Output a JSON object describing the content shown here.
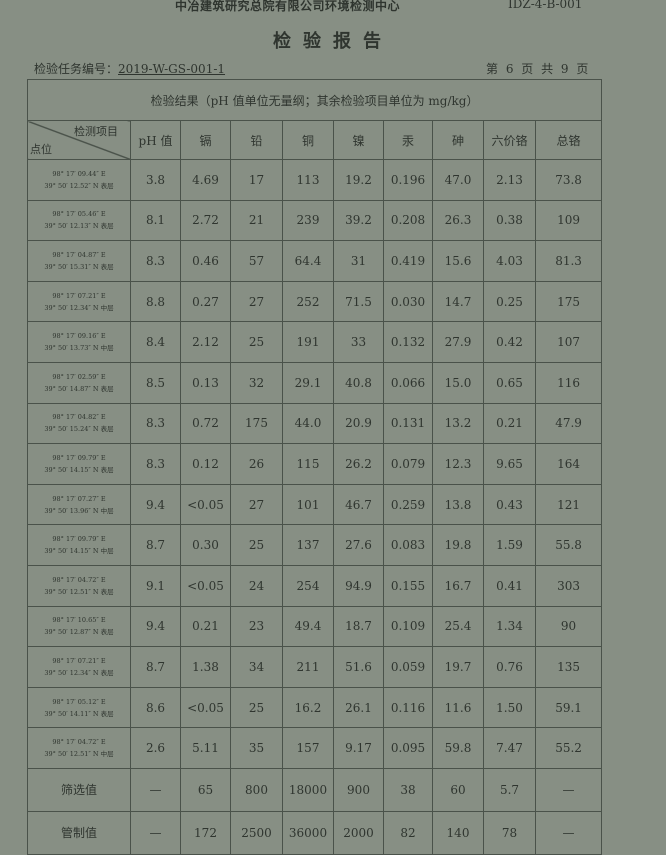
{
  "header": {
    "org": "中冶建筑研究总院有限公司环境检测中心",
    "code": "IDZ-4-B-001",
    "title": "检验报告",
    "task_label": "检验任务编号：",
    "task_no": "2019-W-GS-001-1",
    "page": "第 6 页  共 9 页"
  },
  "table": {
    "caption": "检验结果（pH 值单位无量纲；其余检验项目单位为 mg/kg）",
    "corner_top": "检测项目",
    "corner_bottom": "点位",
    "columns": [
      "pH 值",
      "镉",
      "铅",
      "铜",
      "镍",
      "汞",
      "砷",
      "六价铬",
      "总铬"
    ],
    "rows": [
      {
        "lon": "98° 17′ 09.44″ E",
        "lat": "39° 50′ 12.52″ N 表层",
        "values": [
          "3.8",
          "4.69",
          "17",
          "113",
          "19.2",
          "0.196",
          "47.0",
          "2.13",
          "73.8"
        ]
      },
      {
        "lon": "98° 17′ 05.46″ E",
        "lat": "39° 50′ 12.13″ N 表层",
        "values": [
          "8.1",
          "2.72",
          "21",
          "239",
          "39.2",
          "0.208",
          "26.3",
          "0.38",
          "109"
        ]
      },
      {
        "lon": "98° 17′ 04.87″ E",
        "lat": "39° 50′ 15.31″ N 表层",
        "values": [
          "8.3",
          "0.46",
          "57",
          "64.4",
          "31",
          "0.419",
          "15.6",
          "4.03",
          "81.3"
        ]
      },
      {
        "lon": "98° 17′ 07.21″ E",
        "lat": "39° 50′ 12.34″ N 中层",
        "values": [
          "8.8",
          "0.27",
          "27",
          "252",
          "71.5",
          "0.030",
          "14.7",
          "0.25",
          "175"
        ]
      },
      {
        "lon": "98° 17′ 09.16″ E",
        "lat": "39° 50′ 13.73″ N 中层",
        "values": [
          "8.4",
          "2.12",
          "25",
          "191",
          "33",
          "0.132",
          "27.9",
          "0.42",
          "107"
        ]
      },
      {
        "lon": "98° 17′ 02.59″ E",
        "lat": "39° 50′ 14.87″ N 表层",
        "values": [
          "8.5",
          "0.13",
          "32",
          "29.1",
          "40.8",
          "0.066",
          "15.0",
          "0.65",
          "116"
        ]
      },
      {
        "lon": "98° 17′ 04.82″ E",
        "lat": "39° 50′ 15.24″ N 表层",
        "values": [
          "8.3",
          "0.72",
          "175",
          "44.0",
          "20.9",
          "0.131",
          "13.2",
          "0.21",
          "47.9"
        ]
      },
      {
        "lon": "98° 17′ 09.79″ E",
        "lat": "39° 50′ 14.15″ N 表层",
        "values": [
          "8.3",
          "0.12",
          "26",
          "115",
          "26.2",
          "0.079",
          "12.3",
          "9.65",
          "164"
        ]
      },
      {
        "lon": "98° 17′ 07.27″ E",
        "lat": "39° 50′ 13.96″ N 中层",
        "values": [
          "9.4",
          "<0.05",
          "27",
          "101",
          "46.7",
          "0.259",
          "13.8",
          "0.43",
          "121"
        ]
      },
      {
        "lon": "98° 17′ 09.79″ E",
        "lat": "39° 50′ 14.15″ N 中层",
        "values": [
          "8.7",
          "0.30",
          "25",
          "137",
          "27.6",
          "0.083",
          "19.8",
          "1.59",
          "55.8"
        ]
      },
      {
        "lon": "98° 17′ 04.72″ E",
        "lat": "39° 50′ 12.51″ N 表层",
        "values": [
          "9.1",
          "<0.05",
          "24",
          "254",
          "94.9",
          "0.155",
          "16.7",
          "0.41",
          "303"
        ]
      },
      {
        "lon": "98° 17′ 10.65″ E",
        "lat": "39° 50′ 12.87″ N 表层",
        "values": [
          "9.4",
          "0.21",
          "23",
          "49.4",
          "18.7",
          "0.109",
          "25.4",
          "1.34",
          "90"
        ]
      },
      {
        "lon": "98° 17′ 07.21″ E",
        "lat": "39° 50′ 12.34″ N 表层",
        "values": [
          "8.7",
          "1.38",
          "34",
          "211",
          "51.6",
          "0.059",
          "19.7",
          "0.76",
          "135"
        ]
      },
      {
        "lon": "98° 17′ 05.12″ E",
        "lat": "39° 50′ 14.11″ N 表层",
        "values": [
          "8.6",
          "<0.05",
          "25",
          "16.2",
          "26.1",
          "0.116",
          "11.6",
          "1.50",
          "59.1"
        ]
      },
      {
        "lon": "98° 17′ 04.72″ E",
        "lat": "39° 50′ 12.51″ N 中层",
        "values": [
          "2.6",
          "5.11",
          "35",
          "157",
          "9.17",
          "0.095",
          "59.8",
          "7.47",
          "55.2"
        ]
      }
    ],
    "footer": [
      {
        "label": "筛选值",
        "values": [
          "—",
          "65",
          "800",
          "18000",
          "900",
          "38",
          "60",
          "5.7",
          "—"
        ]
      },
      {
        "label": "管制值",
        "values": [
          "—",
          "172",
          "2500",
          "36000",
          "2000",
          "82",
          "140",
          "78",
          "—"
        ]
      }
    ]
  }
}
